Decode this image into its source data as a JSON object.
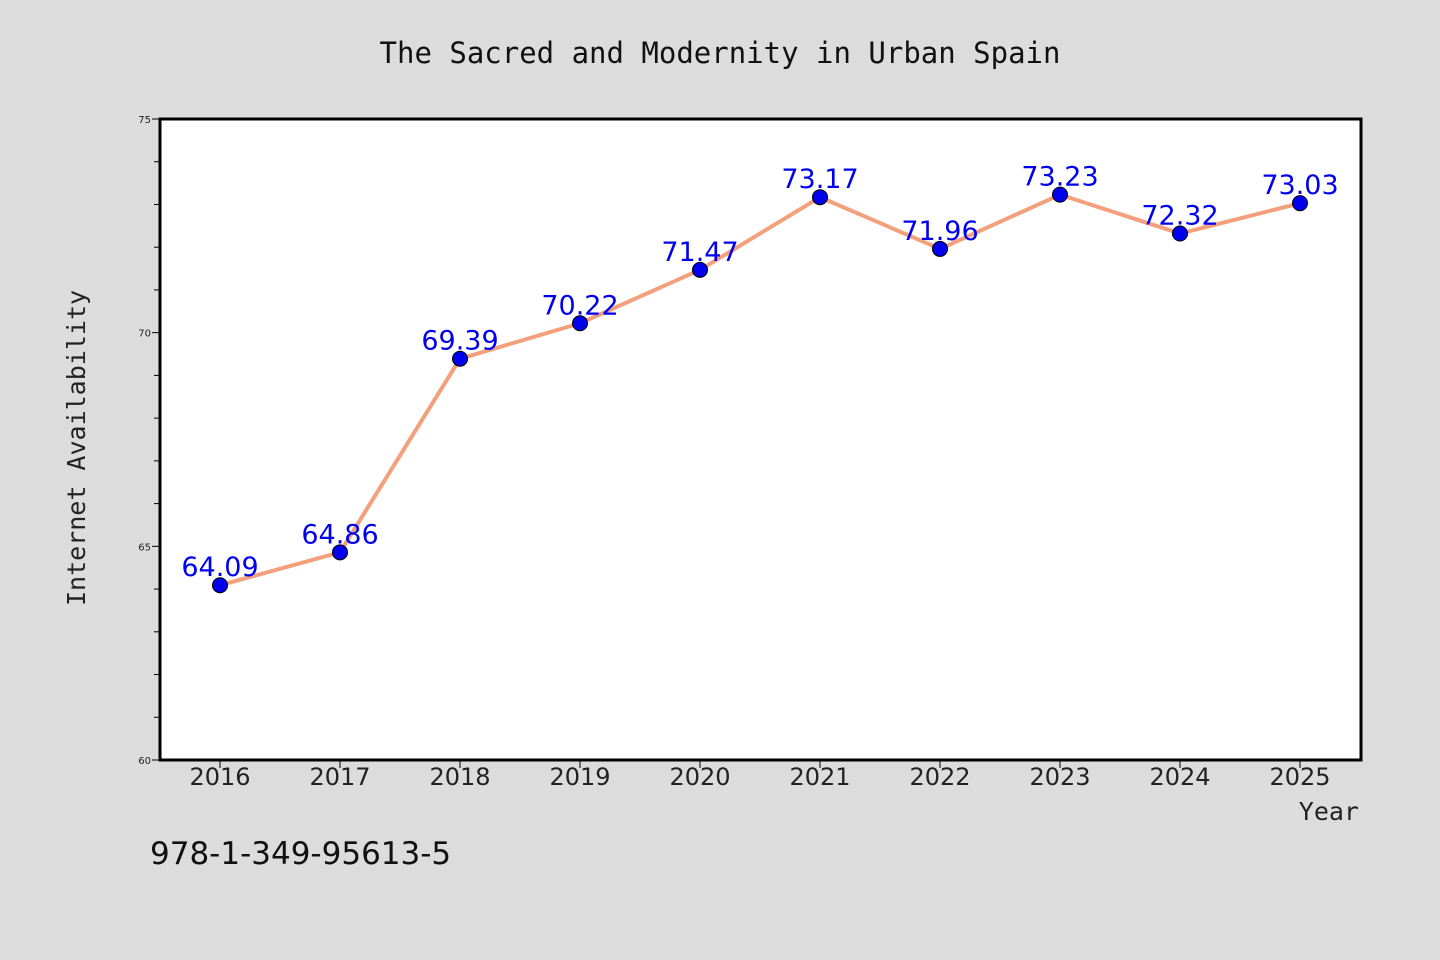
{
  "chart_data": {
    "type": "line",
    "title": "The Sacred and Modernity in Urban Spain",
    "xlabel": "Year",
    "ylabel": "Internet Availability",
    "categories": [
      "2016",
      "2017",
      "2018",
      "2019",
      "2020",
      "2021",
      "2022",
      "2023",
      "2024",
      "2025"
    ],
    "series": [
      {
        "values": [
          64.09,
          64.86,
          69.39,
          70.22,
          71.47,
          73.17,
          71.96,
          73.23,
          72.32,
          73.03
        ],
        "data_labels": [
          "64.09",
          "64.86",
          "69.39",
          "70.22",
          "71.47",
          "73.17",
          "71.96",
          "73.23",
          "72.32",
          "73.03"
        ]
      }
    ],
    "ylim": [
      60,
      75
    ],
    "yticks": [
      "60",
      "65",
      "70",
      "75"
    ],
    "grid": false,
    "line_color": "#f4a07c",
    "marker_color": "#0000ee",
    "label_color": "#0000ee"
  },
  "footer": {
    "isbn": "978-1-349-95613-5"
  }
}
